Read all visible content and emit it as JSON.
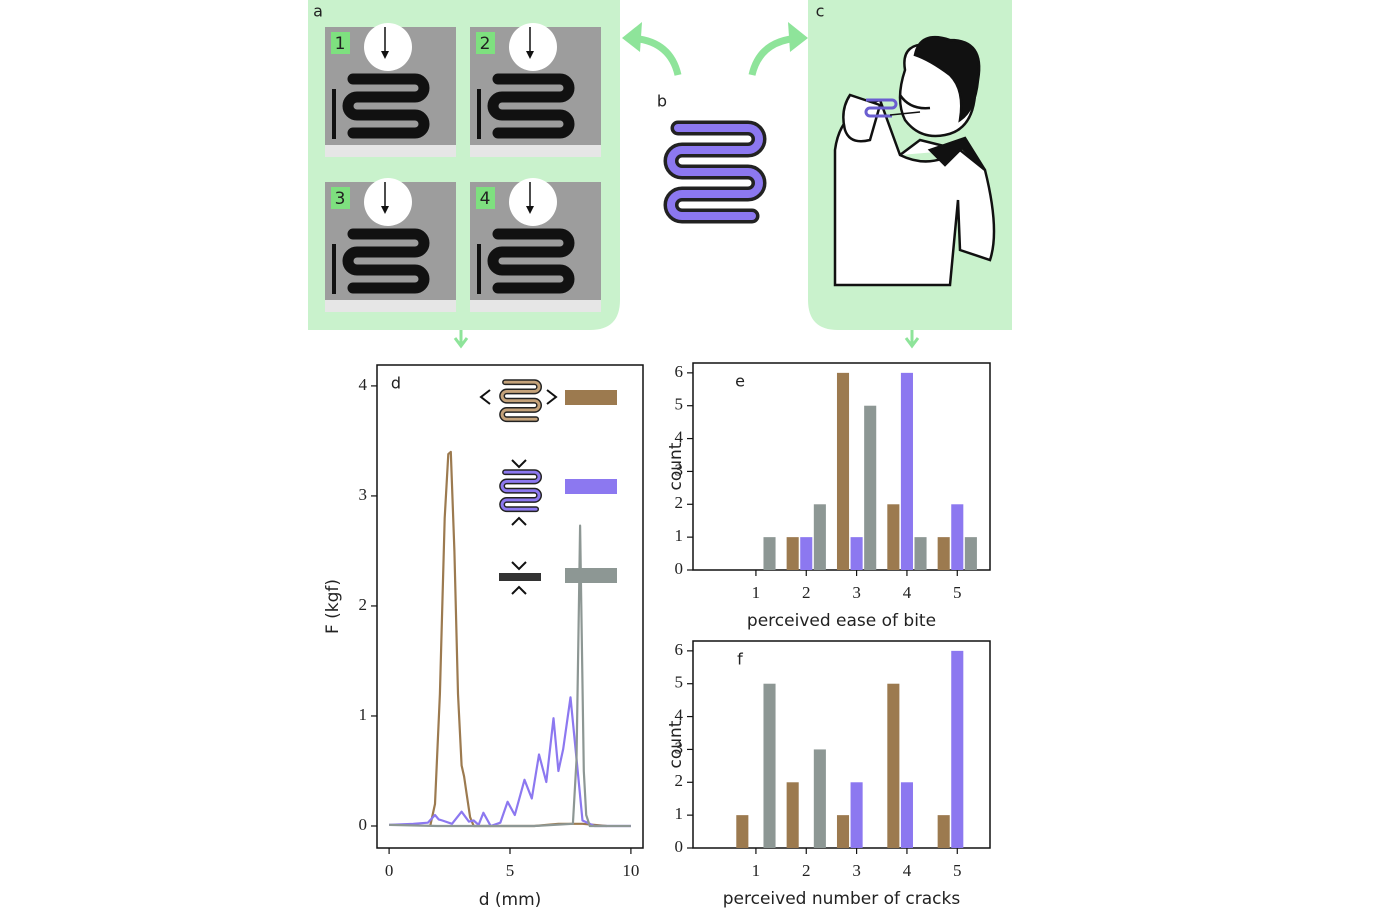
{
  "figure": {
    "panel_labels": [
      "a",
      "b",
      "c"
    ],
    "photo_labels": [
      "1",
      "2",
      "3",
      "4"
    ]
  },
  "chart_data": [
    {
      "type": "line",
      "label": "d",
      "xlabel": "d (mm)",
      "ylabel": "F (kgf)",
      "xlim": [
        -0.5,
        10.5
      ],
      "ylim": [
        -0.2,
        4.19
      ],
      "xticks": [
        0,
        5,
        10
      ],
      "yticks": [
        0,
        1,
        2,
        3,
        4
      ],
      "series": [
        {
          "color": "#9c7a4f",
          "x": [
            1.7,
            1.9,
            2.1,
            2.3,
            2.45,
            2.55,
            2.7,
            2.85,
            3.0,
            3.1,
            3.2,
            3.35,
            3.5,
            4,
            5,
            6,
            7,
            8,
            9
          ],
          "values": [
            0,
            0.2,
            1.2,
            2.8,
            3.38,
            3.4,
            2.5,
            1.2,
            0.55,
            0.45,
            0.3,
            0.08,
            0,
            0,
            0,
            0,
            0.02,
            0.02,
            0
          ]
        },
        {
          "color": "#8c78f0",
          "x": [
            0,
            1,
            1.6,
            1.9,
            2.05,
            2.2,
            2.6,
            3.0,
            3.3,
            3.5,
            3.7,
            3.9,
            4.2,
            4.6,
            4.9,
            5.2,
            5.6,
            5.9,
            6.2,
            6.5,
            6.8,
            7.0,
            7.2,
            7.5,
            7.8,
            8.0,
            8.5,
            10
          ],
          "values": [
            0.01,
            0.02,
            0.03,
            0.1,
            0.06,
            0.05,
            0.02,
            0.13,
            0.04,
            0.05,
            0.01,
            0.12,
            0,
            0.03,
            0.22,
            0.1,
            0.42,
            0.25,
            0.65,
            0.4,
            0.98,
            0.5,
            0.7,
            1.17,
            0.5,
            0.05,
            0,
            0
          ]
        },
        {
          "color": "#8d9794",
          "x": [
            0,
            2,
            4,
            6,
            7.6,
            7.75,
            7.85,
            7.9,
            7.95,
            8.05,
            8.15,
            8.3,
            9,
            10
          ],
          "values": [
            0.01,
            0,
            0,
            0,
            0.02,
            0.6,
            2.0,
            2.73,
            2.0,
            0.5,
            0.1,
            0,
            0,
            0
          ]
        }
      ]
    },
    {
      "type": "bar",
      "label": "e",
      "xlabel": "perceived ease of bite",
      "ylabel": "count",
      "xlim": [
        -0.25,
        5.65
      ],
      "ylim": [
        0,
        6.3
      ],
      "xticks": [
        1,
        2,
        3,
        4,
        5
      ],
      "yticks": [
        0,
        1,
        2,
        3,
        4,
        5,
        6
      ],
      "x": [
        1,
        2,
        3,
        4,
        5
      ],
      "series": [
        {
          "color": "#9c7a4f",
          "values": [
            0,
            1,
            6,
            2,
            1
          ]
        },
        {
          "color": "#8c78f0",
          "values": [
            0,
            1,
            1,
            6,
            2
          ]
        },
        {
          "color": "#8d9794",
          "values": [
            1,
            2,
            5,
            1,
            1
          ]
        }
      ]
    },
    {
      "type": "bar",
      "label": "f",
      "xlabel": "perceived number of cracks",
      "ylabel": "count",
      "xlim": [
        -0.25,
        5.65
      ],
      "ylim": [
        0,
        6.3
      ],
      "xticks": [
        1,
        2,
        3,
        4,
        5
      ],
      "yticks": [
        0,
        1,
        2,
        3,
        4,
        5,
        6
      ],
      "x": [
        1,
        2,
        3,
        4,
        5
      ],
      "series": [
        {
          "color": "#9c7a4f",
          "values": [
            1,
            2,
            1,
            5,
            1
          ]
        },
        {
          "color": "#8c78f0",
          "values": [
            0,
            0,
            2,
            2,
            6
          ]
        },
        {
          "color": "#8d9794",
          "values": [
            5,
            3,
            0,
            0,
            0
          ]
        }
      ]
    }
  ]
}
